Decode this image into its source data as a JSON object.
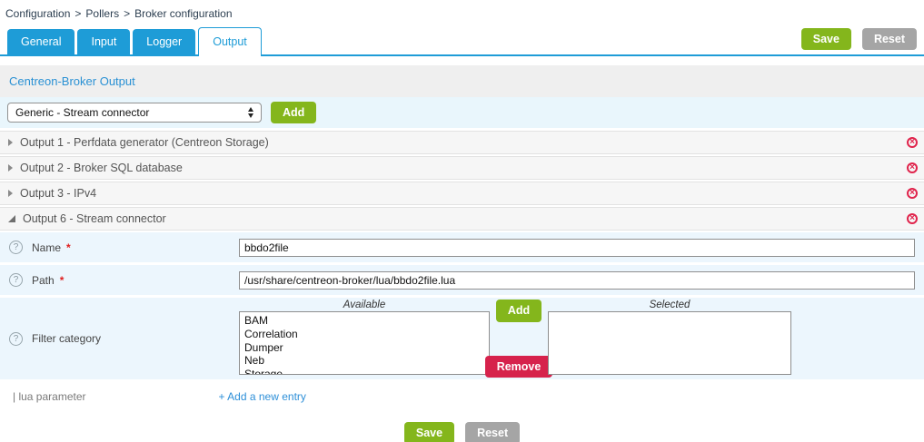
{
  "breadcrumb": {
    "separator": ">",
    "items": [
      "Configuration",
      "Pollers",
      "Broker configuration"
    ]
  },
  "tabs": [
    {
      "label": "General",
      "active": false
    },
    {
      "label": "Input",
      "active": false
    },
    {
      "label": "Logger",
      "active": false
    },
    {
      "label": "Output",
      "active": true
    }
  ],
  "header_actions": {
    "save": "Save",
    "reset": "Reset"
  },
  "panel": {
    "title": "Centreon-Broker Output",
    "add_section": {
      "select_value": "Generic - Stream connector",
      "add_button": "Add"
    },
    "outputs": [
      {
        "label": "Output 1 - Perfdata generator (Centreon Storage)",
        "expanded": false
      },
      {
        "label": "Output 2 - Broker SQL database",
        "expanded": false
      },
      {
        "label": "Output 3 - IPv4",
        "expanded": false
      },
      {
        "label": "Output 6 - Stream connector",
        "expanded": true
      }
    ],
    "form": {
      "required_marker": "*",
      "help_glyph": "?",
      "name": {
        "label": "Name",
        "required": true,
        "value": "bbdo2file"
      },
      "path": {
        "label": "Path",
        "required": true,
        "value": "/usr/share/centreon-broker/lua/bbdo2file.lua"
      },
      "filter_category": {
        "label": "Filter category",
        "available_label": "Available",
        "selected_label": "Selected",
        "available_items": [
          "BAM",
          "Correlation",
          "Dumper",
          "Neb",
          "Storage"
        ],
        "selected_items": [],
        "add_button": "Add",
        "remove_button": "Remove"
      },
      "lua_parameter": {
        "label": "| lua parameter",
        "add_entry": "+ Add a new entry"
      }
    },
    "footer_actions": {
      "save": "Save",
      "reset": "Reset"
    }
  },
  "icons": {
    "delete_output": "circled-x",
    "help": "question-mark-circle",
    "collapsed_row": "triangle-right",
    "expanded_row": "triangle-lower-left",
    "select_spinner": "up-down-arrows"
  },
  "colors": {
    "accent_blue": "#1e9cd7",
    "heading_blue": "#2a91d4",
    "link_blue": "#2d8fd8",
    "green": "#84b61c",
    "gray": "#a5a5a5",
    "red": "#d6224c",
    "icon_red": "#e0244c",
    "row_blue_bg": "#ecf6fd",
    "band_gray_bg": "#efefef",
    "select_band_bg": "#e9f6fc",
    "output_row_bg": "#f6f6f6"
  }
}
